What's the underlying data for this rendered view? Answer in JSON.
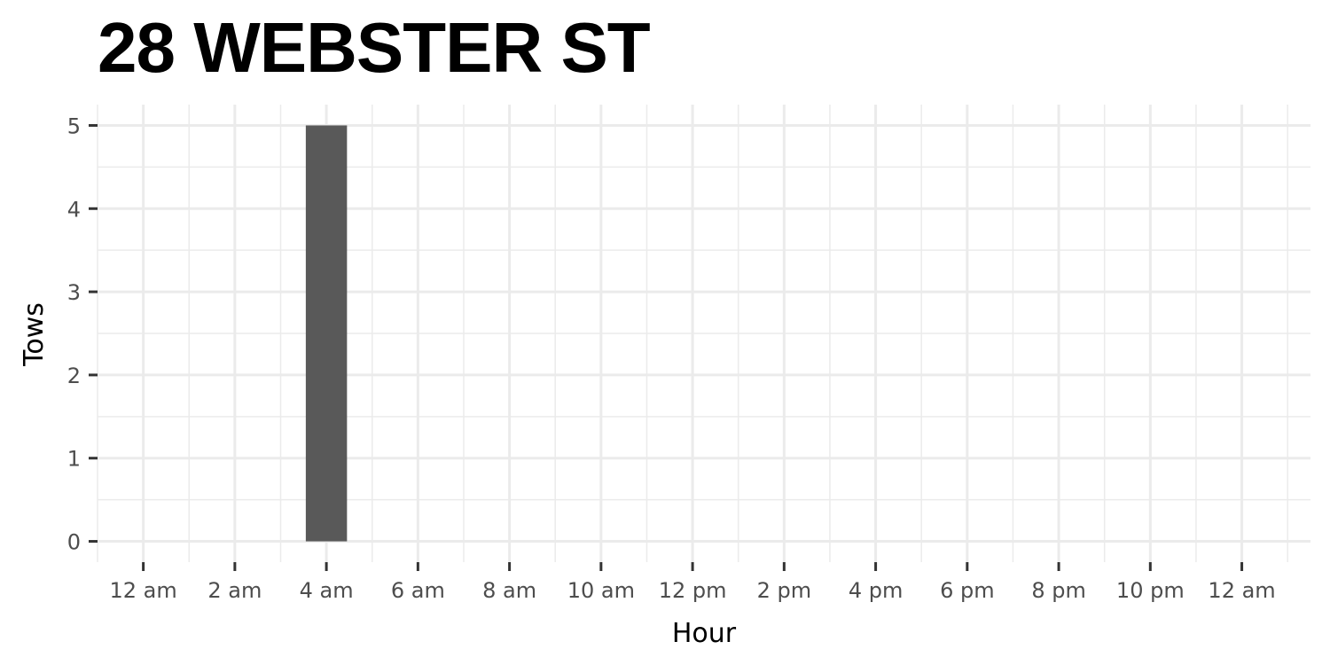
{
  "chart_data": {
    "type": "bar",
    "title": "28 WEBSTER ST",
    "xlabel": "Hour",
    "ylabel": "Tows",
    "x_tick_labels": [
      "12 am",
      "2 am",
      "4 am",
      "6 am",
      "8 am",
      "10 am",
      "12 pm",
      "2 pm",
      "4 pm",
      "6 pm",
      "8 pm",
      "10 pm",
      "12 am"
    ],
    "x_tick_hours": [
      0,
      2,
      4,
      6,
      8,
      10,
      12,
      14,
      16,
      18,
      20,
      22,
      24
    ],
    "xlim": [
      -1,
      25.5
    ],
    "y_ticks": [
      0,
      1,
      2,
      3,
      4,
      5
    ],
    "ylim": [
      -0.25,
      5.25
    ],
    "bars": [
      {
        "hour": 4,
        "value": 5
      }
    ],
    "bar_color": "#595959",
    "grid": true,
    "grid_color": "#ebebeb"
  }
}
